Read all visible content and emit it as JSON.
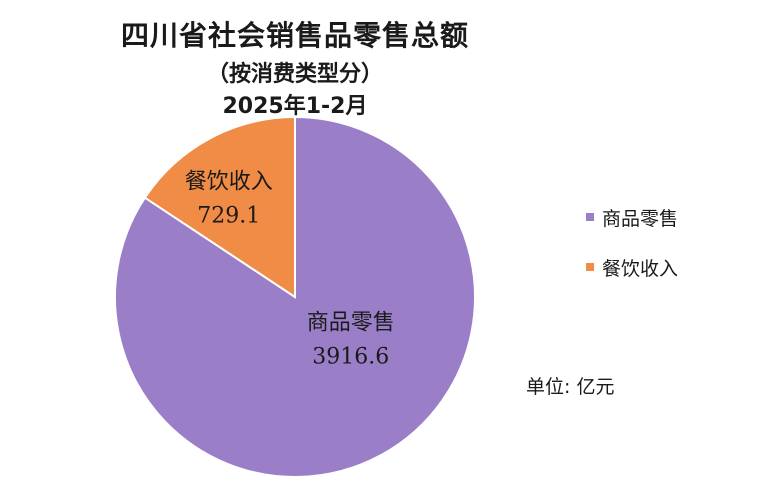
{
  "chart_data": {
    "type": "pie",
    "title": "四川省社会销售品零售总额",
    "subtitle": "（按消费类型分）",
    "period": "2025年1-2月",
    "unit_note": "单位: 亿元",
    "legend_position": "right",
    "slices": [
      {
        "name": "商品零售",
        "value": 3916.6,
        "value_label": "3916.6",
        "color": "#9b7ec8"
      },
      {
        "name": "餐饮收入",
        "value": 729.1,
        "value_label": "729.1",
        "color": "#f08c45"
      }
    ]
  }
}
